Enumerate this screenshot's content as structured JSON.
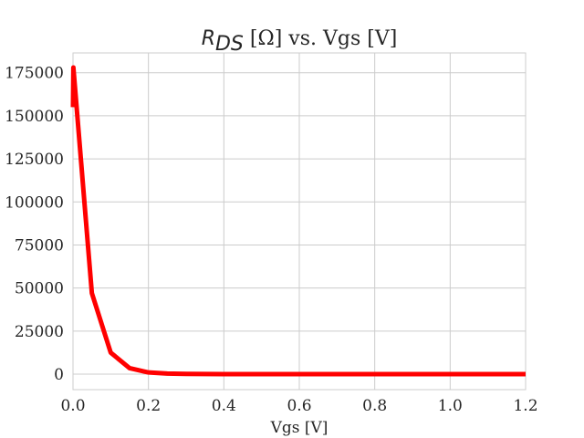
{
  "chart_data": {
    "type": "line",
    "title": {
      "symbol": "R",
      "subscript": "DS",
      "rest": " [Ω] vs. Vgs [V]"
    },
    "xlabel": "Vgs [V]",
    "ylabel": "",
    "xlim": [
      0.0,
      1.2
    ],
    "ylim": [
      -9000,
      186500
    ],
    "xticks": [
      "0.0",
      "0.2",
      "0.4",
      "0.6",
      "0.8",
      "1.0",
      "1.2"
    ],
    "yticks": [
      "0",
      "25000",
      "50000",
      "75000",
      "100000",
      "125000",
      "150000",
      "175000"
    ],
    "grid": true,
    "legend": "none",
    "series": [
      {
        "color": "#ff0000",
        "x": [
          0.0,
          0.001,
          0.05,
          0.1,
          0.15,
          0.2,
          0.25,
          0.3,
          0.35,
          0.4,
          0.5,
          0.6,
          0.7,
          0.8,
          0.9,
          1.0,
          1.1,
          1.2
        ],
        "y": [
          155000,
          178000,
          47000,
          12500,
          3500,
          1000,
          350,
          120,
          50,
          20,
          5,
          2,
          1,
          0,
          0,
          0,
          0,
          0
        ]
      }
    ]
  }
}
